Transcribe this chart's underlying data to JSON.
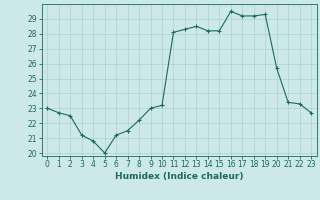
{
  "x": [
    0,
    1,
    2,
    3,
    4,
    5,
    6,
    7,
    8,
    9,
    10,
    11,
    12,
    13,
    14,
    15,
    16,
    17,
    18,
    19,
    20,
    21,
    22,
    23
  ],
  "y": [
    23.0,
    22.7,
    22.5,
    21.2,
    20.8,
    20.0,
    21.2,
    21.5,
    22.2,
    23.0,
    23.2,
    28.1,
    28.3,
    28.5,
    28.2,
    28.2,
    29.5,
    29.2,
    29.2,
    29.3,
    25.7,
    23.4,
    23.3,
    22.7
  ],
  "xlabel": "Humidex (Indice chaleur)",
  "xlim": [
    -0.5,
    23.5
  ],
  "ylim": [
    19.8,
    30.0
  ],
  "yticks": [
    20,
    21,
    22,
    23,
    24,
    25,
    26,
    27,
    28,
    29
  ],
  "xticks": [
    0,
    1,
    2,
    3,
    4,
    5,
    6,
    7,
    8,
    9,
    10,
    11,
    12,
    13,
    14,
    15,
    16,
    17,
    18,
    19,
    20,
    21,
    22,
    23
  ],
  "line_color": "#1a6b5a",
  "marker": "+",
  "bg_color": "#cce8e8",
  "grid_color": "#b0d0d0",
  "label_fontsize": 6.5,
  "tick_fontsize": 5.5
}
